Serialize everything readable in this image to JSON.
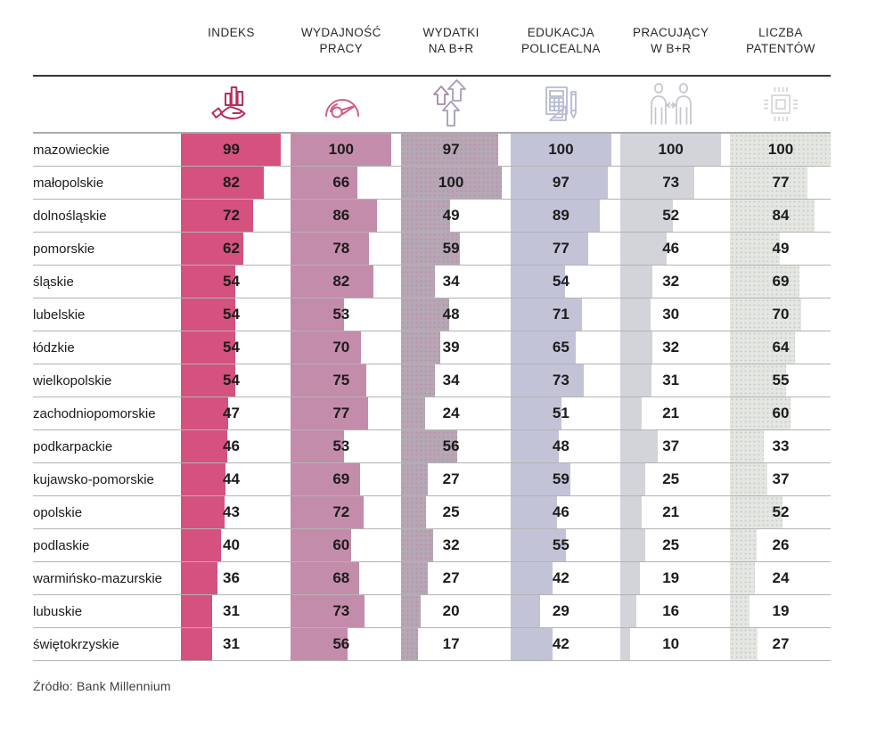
{
  "header": {
    "columns": [
      {
        "id": "indeks",
        "lines": [
          "INDEKS"
        ],
        "icon": "hand-chart-icon",
        "bar_color": "#d5517f",
        "icon_color": "#b72d5c"
      },
      {
        "id": "wydajnosc-pracy",
        "lines": [
          "WYDAJNOŚĆ",
          "PRACY"
        ],
        "icon": "speedometer-icon",
        "icon_color": "#cf6088",
        "bar_color": "#c48cab"
      },
      {
        "id": "wydatki-na-br",
        "lines": [
          "WYDATKI",
          "NA B+R"
        ],
        "icon": "arrows-up-icon",
        "icon_color": "#a69cb8",
        "bar_color": "#b5a7b5"
      },
      {
        "id": "edukacja-policealna",
        "lines": [
          "EDUKACJA",
          "POLICEALNA"
        ],
        "icon": "calculator-icon",
        "icon_color": "#b7bad3",
        "bar_color": "#c2c3d7"
      },
      {
        "id": "pracujacy-w-br",
        "lines": [
          "PRACUJĄCY",
          "W B+R"
        ],
        "icon": "people-icon",
        "icon_color": "#c4c6ce",
        "bar_color": "#d3d4da"
      },
      {
        "id": "liczba-patentow",
        "lines": [
          "LICZBA",
          "PATENTÓW"
        ],
        "icon": "chip-icon",
        "icon_color": "#d3d6d2",
        "bar_color": "#e4e6e2"
      }
    ]
  },
  "chart_data": {
    "type": "bar",
    "orientation": "horizontal",
    "value_range": [
      0,
      100
    ],
    "grid": false,
    "categories": [
      "mazowieckie",
      "małopolskie",
      "dolnośląskie",
      "pomorskie",
      "śląskie",
      "lubelskie",
      "łódzkie",
      "wielkopolskie",
      "zachodniopomorskie",
      "podkarpackie",
      "kujawsko-pomorskie",
      "opolskie",
      "podlaskie",
      "warmińsko-mazurskie",
      "lubuskie",
      "świętokrzyskie"
    ],
    "series": [
      {
        "name": "INDEKS",
        "values": [
          99,
          82,
          72,
          62,
          54,
          54,
          54,
          54,
          47,
          46,
          44,
          43,
          40,
          36,
          31,
          31
        ]
      },
      {
        "name": "WYDAJNOŚĆ PRACY",
        "values": [
          100,
          66,
          86,
          78,
          82,
          53,
          70,
          75,
          77,
          53,
          69,
          72,
          60,
          68,
          73,
          56
        ]
      },
      {
        "name": "WYDATKI NA B+R",
        "values": [
          97,
          100,
          49,
          59,
          34,
          48,
          39,
          34,
          24,
          56,
          27,
          25,
          32,
          27,
          20,
          17
        ]
      },
      {
        "name": "EDUKACJA POLICEALNA",
        "values": [
          100,
          97,
          89,
          77,
          54,
          71,
          65,
          73,
          51,
          48,
          59,
          46,
          55,
          42,
          29,
          42
        ]
      },
      {
        "name": "PRACUJĄCY W B+R",
        "values": [
          100,
          73,
          52,
          46,
          32,
          30,
          32,
          31,
          21,
          37,
          25,
          21,
          25,
          19,
          16,
          10
        ]
      },
      {
        "name": "LICZBA PATENTÓW",
        "values": [
          100,
          77,
          84,
          49,
          69,
          70,
          64,
          55,
          60,
          33,
          37,
          52,
          26,
          24,
          19,
          27
        ]
      }
    ]
  },
  "source_note": "Źródło: Bank Millennium"
}
